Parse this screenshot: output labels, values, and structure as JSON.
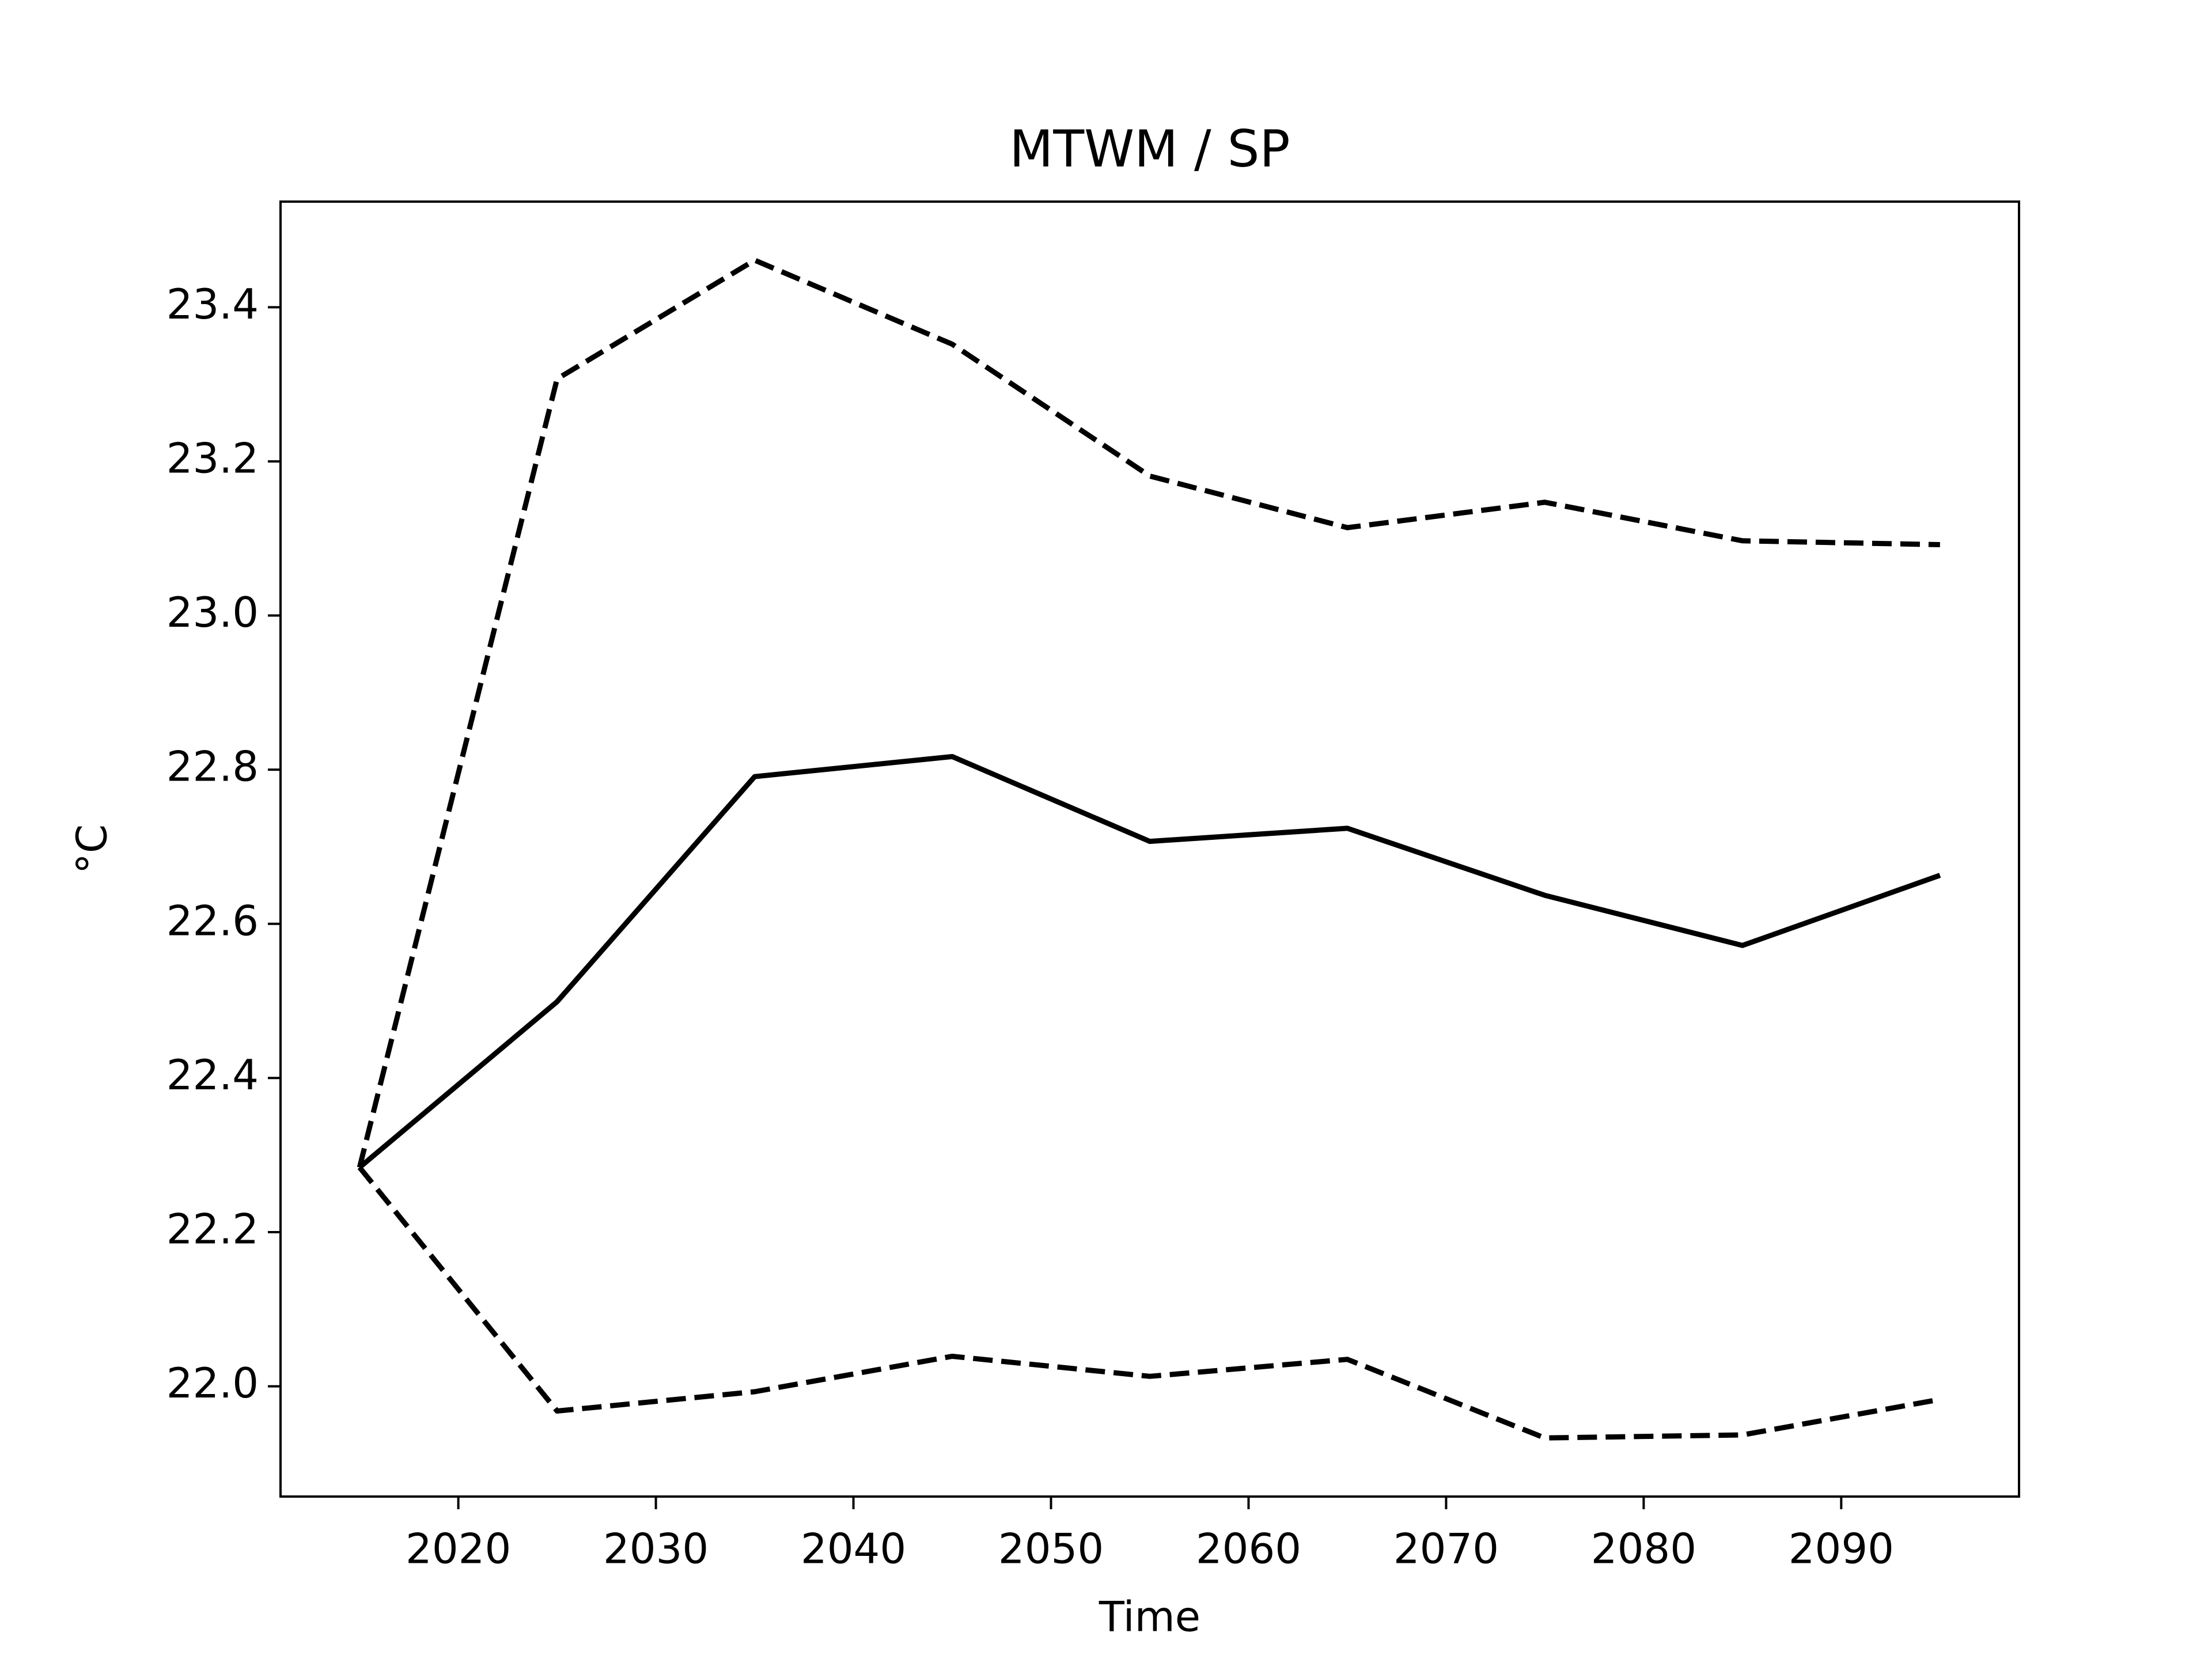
{
  "chart_data": {
    "type": "line",
    "title": "MTWM / SP",
    "x_label": "Time",
    "y_label": "°C",
    "x": [
      2015,
      2025,
      2035,
      2045,
      2055,
      2065,
      2075,
      2085,
      2095
    ],
    "series": [
      {
        "color": "#000000",
        "dash": false,
        "values": [
          22.284,
          22.499,
          22.791,
          22.817,
          22.707,
          22.724,
          22.637,
          22.572,
          22.663
        ]
      },
      {
        "color": "#000000",
        "dash": true,
        "values": [
          22.284,
          23.307,
          23.461,
          23.352,
          23.181,
          23.114,
          23.147,
          23.097,
          23.092
        ]
      },
      {
        "color": "#000000",
        "dash": true,
        "values": [
          22.284,
          21.968,
          21.993,
          22.039,
          22.013,
          22.035,
          21.933,
          21.937,
          21.983
        ]
      }
    ],
    "xlim": [
      2011,
      2099
    ],
    "ylim": [
      21.857,
      23.537
    ],
    "xticks": [
      2020,
      2030,
      2040,
      2050,
      2060,
      2070,
      2080,
      2090
    ],
    "yticks": [
      {
        "value": 22.0,
        "label": "22.0"
      },
      {
        "value": 22.2,
        "label": "22.2"
      },
      {
        "value": 22.4,
        "label": "22.4"
      },
      {
        "value": 22.6,
        "label": "22.6"
      },
      {
        "value": 22.8,
        "label": "22.8"
      },
      {
        "value": 23.0,
        "label": "23.0"
      },
      {
        "value": 23.2,
        "label": "23.2"
      },
      {
        "value": 23.4,
        "label": "23.4"
      }
    ],
    "grid": false
  }
}
